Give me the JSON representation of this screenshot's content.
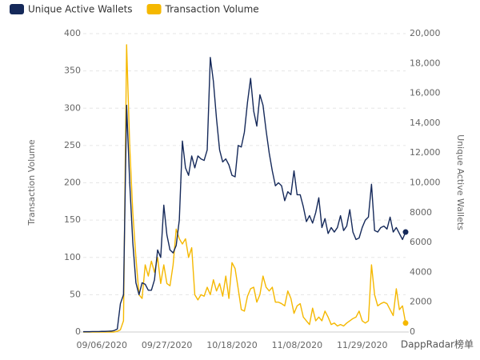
{
  "chart_data": {
    "type": "line",
    "categories": [
      null,
      null,
      null,
      null,
      null,
      null,
      "09/06/2020",
      null,
      null,
      null,
      null,
      null,
      null,
      null,
      null,
      null,
      null,
      null,
      null,
      null,
      null,
      null,
      null,
      null,
      null,
      null,
      null,
      "09/27/2020",
      null,
      null,
      null,
      null,
      null,
      null,
      null,
      null,
      null,
      null,
      null,
      null,
      null,
      null,
      null,
      null,
      null,
      null,
      null,
      null,
      "10/18/2020",
      null,
      null,
      null,
      null,
      null,
      null,
      null,
      null,
      null,
      null,
      null,
      null,
      null,
      null,
      null,
      null,
      null,
      null,
      null,
      null,
      "11/08/2020",
      null,
      null,
      null,
      null,
      null,
      null,
      null,
      null,
      null,
      null,
      null,
      null,
      null,
      null,
      null,
      null,
      null,
      null,
      null,
      null,
      "11/29/2020",
      null,
      null,
      null,
      null,
      null,
      null,
      null,
      null,
      null,
      null,
      null,
      null,
      null,
      null
    ],
    "series": [
      {
        "name": "Unique Active Wallets",
        "color": "#15295a",
        "axis": "y2",
        "values": [
          20,
          20,
          20,
          30,
          30,
          30,
          40,
          40,
          50,
          60,
          100,
          200,
          1900,
          2500,
          15200,
          10000,
          6000,
          3300,
          2500,
          3300,
          3200,
          2800,
          2800,
          3500,
          5500,
          5000,
          8500,
          6500,
          5500,
          5300,
          5800,
          7500,
          12800,
          11000,
          10500,
          11800,
          11000,
          11800,
          11600,
          11500,
          12200,
          18400,
          16800,
          14300,
          12200,
          11400,
          11600,
          11200,
          10500,
          10400,
          12500,
          12400,
          13400,
          15400,
          17000,
          14800,
          13800,
          15900,
          15200,
          13500,
          12000,
          10800,
          9800,
          10000,
          9800,
          8800,
          9400,
          9200,
          10800,
          9200,
          9200,
          8400,
          7400,
          7800,
          7300,
          8000,
          9000,
          7000,
          7600,
          6600,
          7000,
          6700,
          7000,
          7800,
          6800,
          7100,
          8200,
          6700,
          6200,
          6300,
          7000,
          7500,
          7700,
          9900,
          6800,
          6700,
          7000,
          7100,
          6900,
          7700,
          6700,
          7000,
          6600,
          6200,
          6700
        ]
      },
      {
        "name": "Transaction Volume",
        "color": "#f5b800",
        "values": [
          0,
          0,
          0,
          0,
          0,
          0,
          0,
          0,
          0,
          0,
          0,
          1,
          3,
          15,
          385,
          250,
          160,
          100,
          50,
          45,
          90,
          75,
          95,
          80,
          100,
          65,
          90,
          65,
          62,
          90,
          138,
          125,
          118,
          125,
          100,
          113,
          50,
          43,
          50,
          48,
          60,
          50,
          70,
          55,
          65,
          48,
          75,
          45,
          93,
          85,
          58,
          30,
          28,
          48,
          58,
          60,
          40,
          50,
          75,
          60,
          55,
          60,
          40,
          40,
          38,
          35,
          55,
          45,
          25,
          35,
          38,
          20,
          15,
          10,
          32,
          15,
          20,
          15,
          28,
          20,
          10,
          12,
          8,
          10,
          8,
          12,
          15,
          18,
          20,
          28,
          15,
          12,
          15,
          90,
          50,
          35,
          38,
          40,
          38,
          30,
          22,
          58,
          30,
          35,
          12
        ]
      }
    ],
    "ylabel": "Transaction Volume",
    "y2label": "Unique Active Wallets",
    "ylim": [
      0,
      400
    ],
    "yticks": [
      0,
      50,
      100,
      150,
      200,
      250,
      300,
      350,
      400
    ],
    "y2lim": [
      0,
      20000
    ],
    "y2ticks": [
      0,
      2000,
      4000,
      6000,
      8000,
      {
        "value": 10000,
        "label": "10,000"
      },
      {
        "value": 12000,
        "label": "12,000"
      },
      {
        "value": 14000,
        "label": "14,000"
      },
      {
        "value": 16000,
        "label": "16,000"
      },
      {
        "value": 18000,
        "label": "18,000"
      },
      {
        "value": 20000,
        "label": "20,000"
      }
    ],
    "grid": true,
    "watermark": "DappRadar榜单"
  }
}
